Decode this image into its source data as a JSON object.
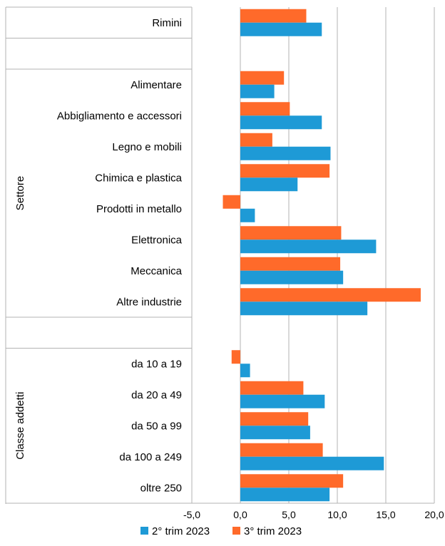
{
  "chart_data": {
    "type": "bar",
    "orientation": "horizontal",
    "categories": [
      "Rimini",
      "",
      "Alimentare",
      "Abbigliamento e accessori",
      "Legno e mobili",
      "Chimica e plastica",
      "Prodotti in metallo",
      "Elettronica",
      "Meccanica",
      "Altre industrie",
      "",
      "da 10 a 19",
      "da 20 a 49",
      "da 50 a 99",
      "da 100 a 249",
      "oltre 250"
    ],
    "groups": [
      {
        "label": "Settore",
        "from": 2,
        "to": 9
      },
      {
        "label": "Classe addetti",
        "from": 11,
        "to": 15
      }
    ],
    "series": [
      {
        "name": "3° trim 2023",
        "color": "#ff6a2a",
        "values": [
          6.8,
          null,
          4.5,
          5.1,
          3.3,
          9.2,
          -1.8,
          10.4,
          10.3,
          18.6,
          null,
          -0.9,
          6.5,
          7.0,
          8.5,
          10.6
        ]
      },
      {
        "name": "2° trim 2023",
        "color": "#1e9ad6",
        "values": [
          8.4,
          null,
          3.5,
          8.4,
          9.3,
          5.9,
          1.5,
          14.0,
          10.6,
          13.1,
          null,
          1.0,
          8.7,
          7.2,
          14.8,
          9.2
        ]
      }
    ],
    "xlim": [
      -5,
      20
    ],
    "xticks": [
      "-5,0",
      "0,0",
      "5,0",
      "10,0",
      "15,0",
      "20,0"
    ],
    "grid": true,
    "legend": {
      "position": "bottom",
      "items": [
        {
          "label": "2° trim 2023",
          "color": "#1e9ad6"
        },
        {
          "label": "3° trim 2023",
          "color": "#ff6a2a"
        }
      ]
    }
  }
}
